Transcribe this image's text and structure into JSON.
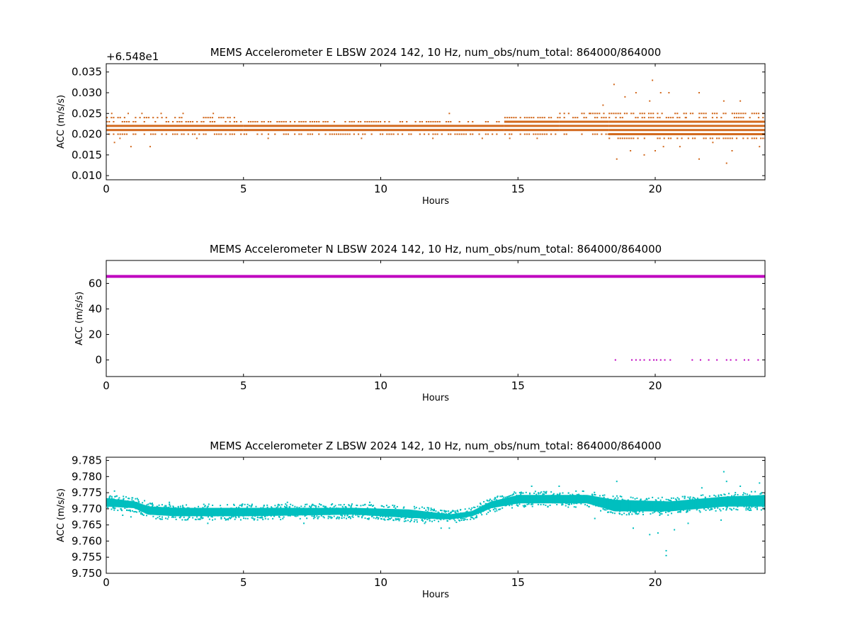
{
  "chart_data": [
    {
      "type": "scatter",
      "title": "MEMS Accelerometer E LBSW 2024 142, 10 Hz, num_obs/num_total: 864000/864000",
      "xlabel": "Hours",
      "ylabel": "ACC (m/s/s)",
      "offset_label": "+6.548e1",
      "xlim": [
        0,
        24
      ],
      "ylim": [
        0.009,
        0.037
      ],
      "xticks": [
        0,
        5,
        10,
        15,
        20
      ],
      "yticks": [
        0.01,
        0.015,
        0.02,
        0.025,
        0.03,
        0.035
      ],
      "ytick_labels": [
        "0.010",
        "0.015",
        "0.020",
        "0.025",
        "0.030",
        "0.035"
      ],
      "color": "#d2691e",
      "grid": false,
      "bands": [
        {
          "from": 0.0,
          "to": 5.0,
          "min": 0.0195,
          "max": 0.0235
        },
        {
          "from": 5.0,
          "to": 14.5,
          "min": 0.02,
          "max": 0.023
        },
        {
          "from": 14.5,
          "to": 16.5,
          "min": 0.02,
          "max": 0.024
        },
        {
          "from": 16.5,
          "to": 18.3,
          "min": 0.0195,
          "max": 0.0245
        },
        {
          "from": 18.3,
          "to": 24.0,
          "min": 0.019,
          "max": 0.0245
        }
      ],
      "outliers": [
        [
          0.2,
          0.025
        ],
        [
          0.3,
          0.018
        ],
        [
          0.5,
          0.019
        ],
        [
          0.8,
          0.025
        ],
        [
          0.9,
          0.017
        ],
        [
          1.3,
          0.025
        ],
        [
          1.6,
          0.017
        ],
        [
          2.0,
          0.025
        ],
        [
          2.8,
          0.025
        ],
        [
          3.3,
          0.019
        ],
        [
          3.9,
          0.025
        ],
        [
          5.9,
          0.019
        ],
        [
          9.3,
          0.019
        ],
        [
          11.9,
          0.019
        ],
        [
          12.5,
          0.025
        ],
        [
          13.7,
          0.019
        ],
        [
          14.7,
          0.019
        ],
        [
          15.7,
          0.019
        ],
        [
          17.6,
          0.025
        ],
        [
          18.1,
          0.027
        ],
        [
          18.5,
          0.032
        ],
        [
          18.6,
          0.014
        ],
        [
          18.9,
          0.029
        ],
        [
          19.1,
          0.016
        ],
        [
          19.3,
          0.03
        ],
        [
          19.6,
          0.015
        ],
        [
          19.8,
          0.028
        ],
        [
          19.9,
          0.033
        ],
        [
          20.0,
          0.016
        ],
        [
          20.2,
          0.03
        ],
        [
          20.3,
          0.017
        ],
        [
          20.5,
          0.03
        ],
        [
          20.9,
          0.017
        ],
        [
          21.1,
          0.024
        ],
        [
          21.6,
          0.014
        ],
        [
          21.6,
          0.03
        ],
        [
          22.1,
          0.018
        ],
        [
          22.5,
          0.028
        ],
        [
          22.6,
          0.013
        ],
        [
          22.8,
          0.016
        ],
        [
          23.1,
          0.028
        ],
        [
          23.8,
          0.017
        ]
      ]
    },
    {
      "type": "scatter",
      "title": "MEMS Accelerometer N LBSW 2024 142, 10 Hz, num_obs/num_total: 864000/864000",
      "xlabel": "Hours",
      "ylabel": "ACC (m/s/s)",
      "xlim": [
        0,
        24
      ],
      "ylim": [
        -13,
        78
      ],
      "xticks": [
        0,
        5,
        10,
        15,
        20
      ],
      "yticks": [
        0,
        20,
        40,
        60
      ],
      "ytick_labels": [
        "0",
        "20",
        "40",
        "60"
      ],
      "color": "#bf00bf",
      "grid": false,
      "main_value": 65.5,
      "dropouts": [
        18.55,
        19.15,
        19.3,
        19.45,
        19.6,
        19.8,
        19.95,
        20.05,
        20.2,
        20.35,
        20.55,
        21.35,
        21.65,
        21.95,
        22.25,
        22.6,
        22.75,
        22.95,
        23.25,
        23.4,
        23.75
      ],
      "dropout_value": 0
    },
    {
      "type": "scatter",
      "title": "MEMS Accelerometer Z LBSW 2024 142, 10 Hz, num_obs/num_total: 864000/864000",
      "xlabel": "Hours",
      "ylabel": "ACC (m/s/s)",
      "xlim": [
        0,
        24
      ],
      "ylim": [
        9.75,
        9.786
      ],
      "xticks": [
        0,
        5,
        10,
        15,
        20
      ],
      "yticks": [
        9.75,
        9.755,
        9.76,
        9.765,
        9.77,
        9.775,
        9.78,
        9.785
      ],
      "ytick_labels": [
        "9.750",
        "9.755",
        "9.760",
        "9.765",
        "9.770",
        "9.775",
        "9.780",
        "9.785"
      ],
      "color": "#00bfbf",
      "grid": false,
      "trend": [
        {
          "x": 0.0,
          "min": 9.7695,
          "max": 9.7745
        },
        {
          "x": 1.0,
          "min": 9.769,
          "max": 9.7735
        },
        {
          "x": 1.5,
          "min": 9.767,
          "max": 9.772
        },
        {
          "x": 2.5,
          "min": 9.7665,
          "max": 9.7715
        },
        {
          "x": 5.0,
          "min": 9.7665,
          "max": 9.7715
        },
        {
          "x": 9.0,
          "min": 9.767,
          "max": 9.7715
        },
        {
          "x": 11.0,
          "min": 9.766,
          "max": 9.771
        },
        {
          "x": 12.5,
          "min": 9.7655,
          "max": 9.7695
        },
        {
          "x": 13.3,
          "min": 9.7665,
          "max": 9.7705
        },
        {
          "x": 14.0,
          "min": 9.769,
          "max": 9.7735
        },
        {
          "x": 15.0,
          "min": 9.7705,
          "max": 9.7755
        },
        {
          "x": 17.5,
          "min": 9.7705,
          "max": 9.7755
        },
        {
          "x": 18.5,
          "min": 9.768,
          "max": 9.774
        },
        {
          "x": 20.5,
          "min": 9.768,
          "max": 9.7735
        },
        {
          "x": 22.5,
          "min": 9.7695,
          "max": 9.775
        },
        {
          "x": 24.0,
          "min": 9.7695,
          "max": 9.7755
        }
      ],
      "outliers": [
        [
          0.3,
          9.7755
        ],
        [
          0.6,
          9.768
        ],
        [
          0.9,
          9.7675
        ],
        [
          2.3,
          9.772
        ],
        [
          3.7,
          9.7655
        ],
        [
          6.6,
          9.772
        ],
        [
          7.2,
          9.7655
        ],
        [
          9.6,
          9.772
        ],
        [
          11.6,
          9.7655
        ],
        [
          12.2,
          9.764
        ],
        [
          12.5,
          9.764
        ],
        [
          12.8,
          9.7695
        ],
        [
          15.5,
          9.777
        ],
        [
          16.5,
          9.777
        ],
        [
          17.8,
          9.767
        ],
        [
          18.6,
          9.7785
        ],
        [
          19.2,
          9.764
        ],
        [
          19.8,
          9.762
        ],
        [
          20.1,
          9.7625
        ],
        [
          20.4,
          9.757
        ],
        [
          20.4,
          9.7555
        ],
        [
          20.7,
          9.7635
        ],
        [
          21.2,
          9.7655
        ],
        [
          21.7,
          9.7765
        ],
        [
          22.4,
          9.7665
        ],
        [
          22.5,
          9.7815
        ],
        [
          22.6,
          9.7785
        ],
        [
          23.1,
          9.777
        ],
        [
          23.8,
          9.778
        ]
      ]
    }
  ]
}
